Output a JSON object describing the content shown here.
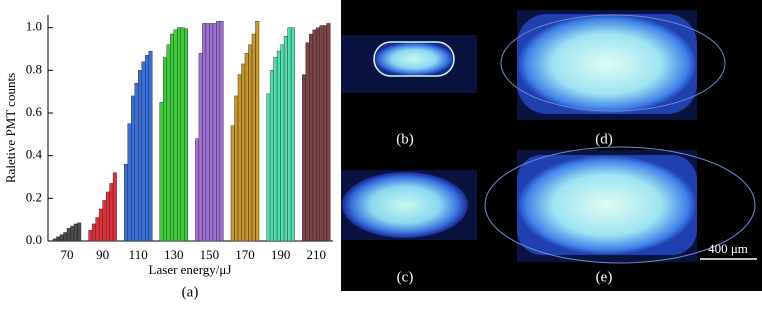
{
  "chart_data": {
    "type": "grouped-bar",
    "ylabel": "Raletive PMT counts",
    "xlabel": "Laser energy/μJ",
    "panel_label": "(a)",
    "ylim": [
      0,
      1.05
    ],
    "yticks": [
      {
        "value": 0,
        "label": "0.0"
      },
      0.2,
      0.4,
      0.6,
      0.8,
      {
        "value": 1,
        "label": "1.0"
      }
    ],
    "groups": [
      {
        "category": "70",
        "color": "#4a4a4a",
        "values": [
          0.01,
          0.02,
          0.03,
          0.04,
          0.06,
          0.07,
          0.08,
          0.085
        ]
      },
      {
        "category": "90",
        "color": "#e0303c",
        "values": [
          0.05,
          0.08,
          0.11,
          0.15,
          0.19,
          0.23,
          0.27,
          0.32
        ]
      },
      {
        "category": "110",
        "color": "#3a6fd8",
        "values": [
          0.36,
          0.55,
          0.68,
          0.74,
          0.8,
          0.84,
          0.87,
          0.89
        ]
      },
      {
        "category": "130",
        "color": "#3ccc3c",
        "values": [
          0.65,
          0.86,
          0.92,
          0.97,
          0.99,
          1.0,
          1.0,
          0.995
        ]
      },
      {
        "category": "150",
        "color": "#a070d8",
        "values": [
          0.48,
          0.88,
          1.02,
          1.02,
          1.02,
          1.02,
          1.03,
          1.03
        ]
      },
      {
        "category": "170",
        "color": "#c8962a",
        "values": [
          0.54,
          0.68,
          0.78,
          0.83,
          0.88,
          0.92,
          0.97,
          1.03
        ]
      },
      {
        "category": "190",
        "color": "#50e0b0",
        "values": [
          0.69,
          0.8,
          0.86,
          0.89,
          0.92,
          0.96,
          1.0,
          1.0
        ]
      },
      {
        "category": "210",
        "color": "#7a4444",
        "values": [
          0.78,
          0.93,
          0.97,
          0.99,
          1.0,
          1.01,
          1.01,
          1.02
        ]
      }
    ]
  },
  "images": {
    "labels": [
      "(b)",
      "(c)",
      "(d)",
      "(e)"
    ],
    "scale_bar": "400 μm"
  }
}
